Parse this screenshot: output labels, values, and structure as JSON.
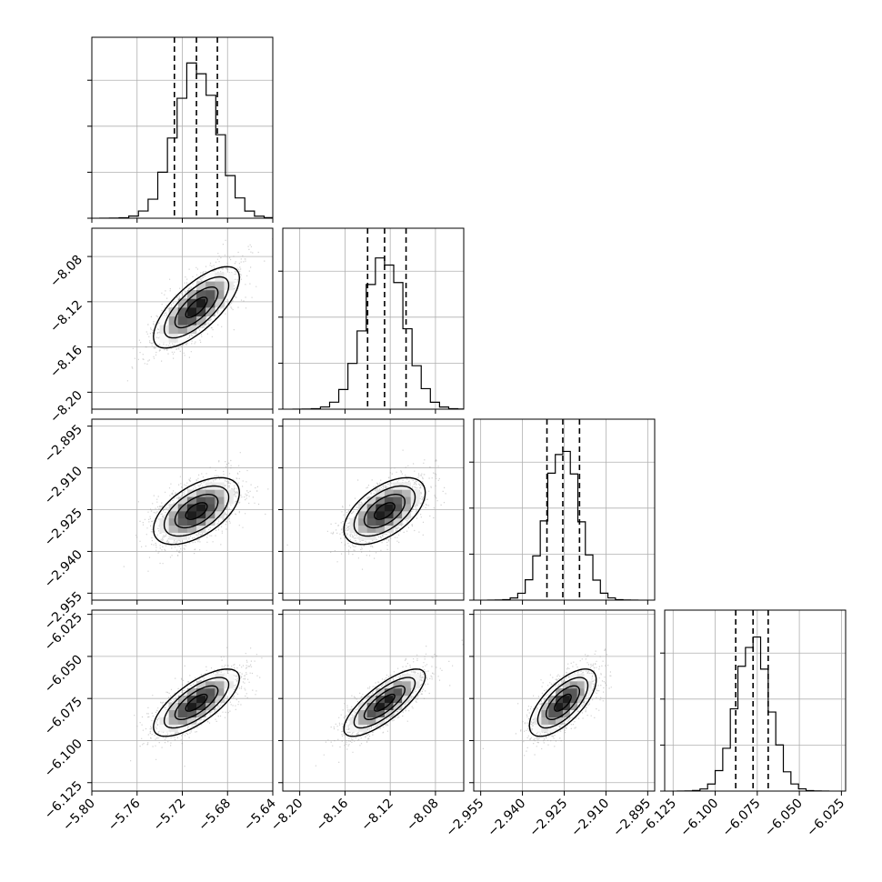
{
  "chart_data": {
    "type": "corner",
    "grid": true,
    "quantiles_shown": [
      0.16,
      0.5,
      0.84
    ],
    "parameters": [
      {
        "median": -5.7075,
        "q16": -5.727,
        "q84": -5.689,
        "std": 0.019,
        "range": [
          -5.8,
          -5.64
        ],
        "ticks": [
          -5.8,
          -5.76,
          -5.72,
          -5.68,
          -5.64
        ],
        "tick_labels": [
          "−5.80",
          "−5.76",
          "−5.72",
          "−5.68",
          "−5.64"
        ]
      },
      {
        "median": -8.125,
        "q16": -8.14,
        "q84": -8.106,
        "std": 0.018,
        "range": [
          -8.215,
          -8.055
        ],
        "ticks": [
          -8.2,
          -8.16,
          -8.12,
          -8.08
        ],
        "tick_labels": [
          "−8.20",
          "−8.16",
          "−8.12",
          "−8.08"
        ]
      },
      {
        "median": -2.9255,
        "q16": -2.9312,
        "q84": -2.9195,
        "std": 0.006,
        "range": [
          -2.9575,
          -2.8925
        ],
        "ticks": [
          -2.955,
          -2.94,
          -2.925,
          -2.91,
          -2.895
        ],
        "tick_labels": [
          "−2.955",
          "−2.940",
          "−2.925",
          "−2.910",
          "−2.895"
        ]
      },
      {
        "median": -6.0775,
        "q16": -6.0878,
        "q84": -6.0685,
        "std": 0.01,
        "range": [
          -6.13,
          -6.0225
        ],
        "ticks": [
          -6.125,
          -6.1,
          -6.075,
          -6.05,
          -6.025
        ],
        "tick_labels": [
          "−6.125",
          "−6.100",
          "−6.075",
          "−6.050",
          "−6.025"
        ]
      }
    ],
    "correlations": {
      "1-0": 0.72,
      "2-0": 0.55,
      "2-1": 0.55,
      "3-0": 0.72,
      "3-1": 0.78,
      "3-2": 0.68
    },
    "contour_levels_sigma": [
      0.5,
      1.0,
      1.5,
      2.0
    ],
    "histogram_bins": 20,
    "hist_ylim_relative": [
      0,
      1.18
    ],
    "hist_yticks_relative": [
      0.0,
      0.3,
      0.6,
      0.9
    ]
  }
}
